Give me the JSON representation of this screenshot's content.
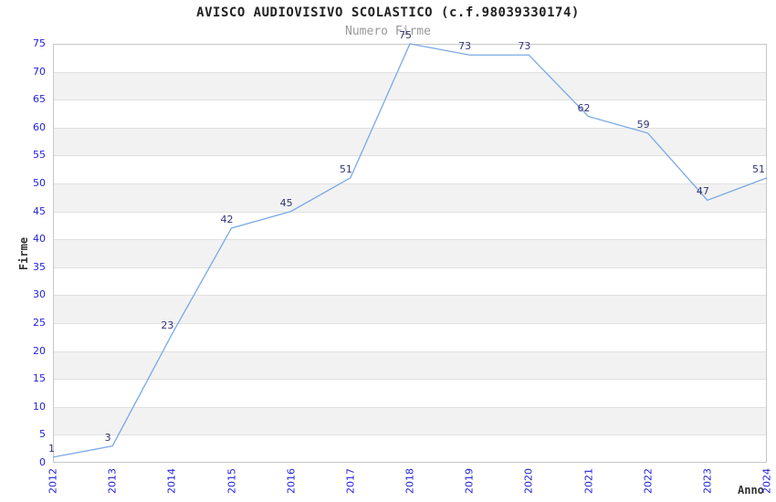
{
  "chart_data": {
    "type": "line",
    "title": "AVISCO AUDIOVISIVO SCOLASTICO (c.f.98039330174)",
    "subtitle": "Numero Firme",
    "xlabel": "Anno",
    "ylabel": "Firme",
    "categories": [
      "2012",
      "2013",
      "2014",
      "2015",
      "2016",
      "2017",
      "2018",
      "2019",
      "2020",
      "2021",
      "2022",
      "2023",
      "2024"
    ],
    "values": [
      1,
      3,
      23,
      42,
      45,
      51,
      75,
      73,
      73,
      62,
      59,
      47,
      51
    ],
    "ylim": [
      0,
      75
    ],
    "ytick_step": 5,
    "grid": "horizontal gridlines every 5 units with alternating gray bands",
    "legend": "none",
    "data_labels_shown": true,
    "colors": {
      "line": "#7aa9e6",
      "tick_labels": "#2222dd",
      "point_labels": "#333377",
      "title": "#222222",
      "subtitle": "#999999",
      "axis_titles": "#333333",
      "band_gray": "#f2f2f2",
      "gridline": "#e0e0e0",
      "plot_border": "#c8c8c8",
      "background": "#ffffff"
    }
  }
}
